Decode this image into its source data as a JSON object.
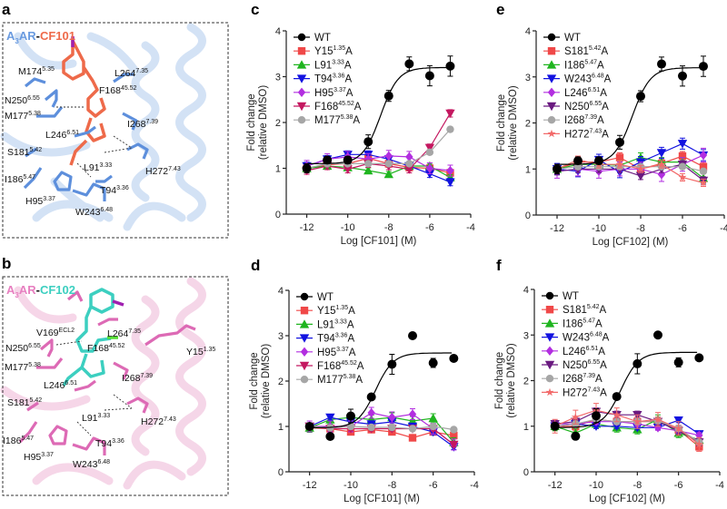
{
  "panels": {
    "a": {
      "letter": "a",
      "title_receptor": "A",
      "title_sub": "3",
      "title_rest": "AR",
      "title_dash": "-",
      "title_ligand": "CF101",
      "receptor_color": "#6a9be0",
      "ligand_color": "#ee6a4a",
      "residues": [
        {
          "name": "M174",
          "sup": "5.35"
        },
        {
          "name": "L264",
          "sup": "7.35"
        },
        {
          "name": "F168",
          "sup": "45.52"
        },
        {
          "name": "N250",
          "sup": "6.55"
        },
        {
          "name": "M177",
          "sup": "5.38"
        },
        {
          "name": "I268",
          "sup": "7.39"
        },
        {
          "name": "L246",
          "sup": "6.51"
        },
        {
          "name": "S181",
          "sup": "5.42"
        },
        {
          "name": "L91",
          "sup": "3.33"
        },
        {
          "name": "H272",
          "sup": "7.43"
        },
        {
          "name": "I186",
          "sup": "5.47"
        },
        {
          "name": "T94",
          "sup": "3.36"
        },
        {
          "name": "H95",
          "sup": "3.37"
        },
        {
          "name": "W243",
          "sup": "6.48"
        }
      ]
    },
    "b": {
      "letter": "b",
      "title_receptor": "A",
      "title_sub": "3",
      "title_rest": "AR",
      "title_dash": "-",
      "title_ligand": "CF102",
      "receptor_color": "#e77fc0",
      "ligand_color": "#3ccfc0",
      "residues": [
        {
          "name": "V169",
          "sup": "ECL2"
        },
        {
          "name": "L264",
          "sup": "7.35"
        },
        {
          "name": "N250",
          "sup": "6.55"
        },
        {
          "name": "F168",
          "sup": "45.52"
        },
        {
          "name": "Y15",
          "sup": "1.35"
        },
        {
          "name": "M177",
          "sup": "5.38"
        },
        {
          "name": "I268",
          "sup": "7.39"
        },
        {
          "name": "L246",
          "sup": "6.51"
        },
        {
          "name": "S181",
          "sup": "5.42"
        },
        {
          "name": "L91",
          "sup": "3.33"
        },
        {
          "name": "H272",
          "sup": "7.43"
        },
        {
          "name": "I186",
          "sup": "5.47"
        },
        {
          "name": "T94",
          "sup": "3.36"
        },
        {
          "name": "H95",
          "sup": "3.37"
        },
        {
          "name": "W243",
          "sup": "6.48"
        }
      ]
    }
  },
  "chart_data": [
    {
      "id": "c",
      "letter": "c",
      "type": "scatter",
      "xlabel": "Log [CF101] (M)",
      "ylabel_1": "Fold change",
      "ylabel_2": "(relative DMSO)",
      "xlim": [
        -13,
        -4
      ],
      "ylim": [
        0,
        4
      ],
      "xticks": [
        -12,
        -10,
        -8,
        -6,
        -4
      ],
      "yticks": [
        0,
        1,
        2,
        3,
        4
      ],
      "x": [
        -12,
        -11,
        -10,
        -9,
        -8,
        -7,
        -6,
        -5
      ],
      "legend_position": "top-left",
      "series": [
        {
          "name": "WT",
          "sup": "",
          "suffix": "",
          "color": "#000000",
          "marker": "circle",
          "y": [
            1.0,
            1.18,
            1.18,
            1.58,
            2.58,
            3.28,
            3.02,
            3.23
          ],
          "err": [
            0.1,
            0.08,
            0.08,
            0.15,
            0.12,
            0.15,
            0.22,
            0.22
          ],
          "fit": {
            "bottom": 1.1,
            "top": 3.2,
            "logEC50": -8.4,
            "hill": 1
          }
        },
        {
          "name": "Y15",
          "sup": "1.35",
          "suffix": "A",
          "color": "#f04848",
          "marker": "square",
          "y": [
            1.0,
            1.08,
            1.1,
            1.22,
            1.1,
            1.02,
            1.0,
            0.9
          ],
          "err": 0.08
        },
        {
          "name": "L91",
          "sup": "3.33",
          "suffix": "A",
          "color": "#1fb51f",
          "marker": "triangle-up",
          "y": [
            1.0,
            1.05,
            1.02,
            0.95,
            0.87,
            1.05,
            1.05,
            0.8
          ],
          "err": 0.06
        },
        {
          "name": "T94",
          "sup": "3.36",
          "suffix": "A",
          "color": "#1212e0",
          "marker": "triangle-down",
          "y": [
            1.05,
            1.2,
            1.3,
            1.3,
            1.2,
            1.05,
            0.88,
            0.7
          ],
          "err": 0.08
        },
        {
          "name": "H95",
          "sup": "3.37",
          "suffix": "A",
          "color": "#b22ee0",
          "marker": "diamond",
          "y": [
            1.05,
            1.2,
            1.25,
            1.2,
            1.27,
            1.25,
            1.0,
            0.95
          ],
          "err": 0.12
        },
        {
          "name": "F168",
          "sup": "45.52",
          "suffix": "A",
          "color": "#c41860",
          "marker": "triangle-down",
          "y": [
            0.95,
            1.05,
            0.98,
            1.1,
            1.05,
            0.98,
            1.45,
            2.2
          ],
          "err": 0.08
        },
        {
          "name": "M177",
          "sup": "5.38",
          "suffix": "A",
          "color": "#a6a6a6",
          "marker": "circle",
          "y": [
            1.0,
            1.1,
            1.1,
            1.1,
            1.1,
            1.1,
            1.35,
            1.85
          ],
          "err": 0.05
        }
      ]
    },
    {
      "id": "d",
      "letter": "d",
      "type": "scatter",
      "xlabel": "Log [CF101] (M)",
      "ylabel_1": "Fold change",
      "ylabel_2": "(relative DMSO)",
      "xlim": [
        -13,
        -4
      ],
      "ylim": [
        0,
        4
      ],
      "xticks": [
        -12,
        -10,
        -8,
        -6,
        -4
      ],
      "yticks": [
        0,
        1,
        2,
        3,
        4
      ],
      "x": [
        -12,
        -11,
        -10,
        -9,
        -8,
        -7,
        -6,
        -5
      ],
      "legend_position": "top-left",
      "series": [
        {
          "name": "WT",
          "sup": "",
          "suffix": "",
          "color": "#000000",
          "marker": "circle",
          "y": [
            1.0,
            0.78,
            1.23,
            1.65,
            2.37,
            3.0,
            2.4,
            2.5
          ],
          "err": [
            0.05,
            0.05,
            0.15,
            0.05,
            0.22,
            0.05,
            0.1,
            0.05
          ],
          "fit": {
            "bottom": 0.97,
            "top": 2.62,
            "logEC50": -8.8,
            "hill": 1
          }
        },
        {
          "name": "Y15",
          "sup": "1.35",
          "suffix": "A",
          "color": "#f04848",
          "marker": "square",
          "y": [
            0.97,
            0.95,
            0.88,
            0.93,
            0.88,
            0.75,
            0.88,
            0.8
          ],
          "err": 0.05
        },
        {
          "name": "L91",
          "sup": "3.33",
          "suffix": "A",
          "color": "#1fb51f",
          "marker": "triangle-up",
          "y": [
            0.97,
            1.15,
            1.2,
            1.15,
            1.2,
            1.12,
            1.18,
            0.65
          ],
          "err": 0.1
        },
        {
          "name": "T94",
          "sup": "3.36",
          "suffix": "A",
          "color": "#1212e0",
          "marker": "triangle-down",
          "y": [
            1.0,
            1.2,
            1.1,
            1.05,
            1.1,
            1.0,
            0.88,
            0.55
          ],
          "err": 0.06
        },
        {
          "name": "H95",
          "sup": "3.37",
          "suffix": "A",
          "color": "#b22ee0",
          "marker": "diamond",
          "y": [
            1.0,
            1.0,
            1.0,
            1.3,
            1.2,
            1.27,
            0.95,
            0.6
          ],
          "err": 0.12
        },
        {
          "name": "F168",
          "sup": "45.52",
          "suffix": "A",
          "color": "#c41860",
          "marker": "triangle-down",
          "y": [
            1.0,
            0.95,
            0.95,
            0.95,
            0.95,
            0.95,
            0.95,
            0.6
          ],
          "err": 0.05
        },
        {
          "name": "M177",
          "sup": "5.38",
          "suffix": "A",
          "color": "#a6a6a6",
          "marker": "circle",
          "y": [
            1.0,
            0.97,
            1.0,
            0.98,
            0.98,
            0.95,
            1.0,
            0.93
          ],
          "err": 0.05
        }
      ]
    },
    {
      "id": "e",
      "letter": "e",
      "type": "scatter",
      "xlabel": "Log [CF102] (M)",
      "ylabel_1": "Fold change",
      "ylabel_2": "(relative DMSO)",
      "xlim": [
        -13,
        -4
      ],
      "ylim": [
        0,
        4
      ],
      "xticks": [
        -12,
        -10,
        -8,
        -6,
        -4
      ],
      "yticks": [
        0,
        1,
        2,
        3,
        4
      ],
      "x": [
        -12,
        -11,
        -10,
        -9,
        -8,
        -7,
        -6,
        -5
      ],
      "legend_position": "top-left",
      "series": [
        {
          "name": "WT",
          "sup": "",
          "suffix": "",
          "color": "#000000",
          "marker": "circle",
          "y": [
            1.0,
            1.18,
            1.18,
            1.58,
            2.58,
            3.28,
            3.02,
            3.23
          ],
          "err": [
            0.1,
            0.08,
            0.08,
            0.15,
            0.12,
            0.15,
            0.22,
            0.22
          ],
          "fit": {
            "bottom": 1.1,
            "top": 3.2,
            "logEC50": -8.4,
            "hill": 1
          }
        },
        {
          "name": "S181",
          "sup": "5.42",
          "suffix": "A",
          "color": "#f04848",
          "marker": "square",
          "y": [
            1.0,
            1.15,
            1.15,
            1.25,
            1.0,
            1.12,
            1.28,
            1.05
          ],
          "err": 0.1
        },
        {
          "name": "I186",
          "sup": "5.47",
          "suffix": "A",
          "color": "#1fb51f",
          "marker": "triangle-up",
          "y": [
            1.0,
            1.1,
            1.1,
            1.08,
            1.25,
            1.15,
            1.15,
            0.8
          ],
          "err": 0.1
        },
        {
          "name": "W243",
          "sup": "6.48",
          "suffix": "A",
          "color": "#1212e0",
          "marker": "triangle-down",
          "y": [
            1.0,
            0.95,
            1.2,
            0.93,
            1.15,
            1.35,
            1.55,
            1.3
          ],
          "err": 0.12
        },
        {
          "name": "L246",
          "sup": "6.51",
          "suffix": "A",
          "color": "#b22ee0",
          "marker": "diamond",
          "y": [
            0.95,
            1.0,
            0.95,
            1.0,
            1.0,
            0.88,
            1.1,
            1.3
          ],
          "err": 0.15
        },
        {
          "name": "N250",
          "sup": "6.55",
          "suffix": "A",
          "color": "#6a1a80",
          "marker": "triangle-down",
          "y": [
            0.95,
            1.0,
            1.0,
            1.0,
            0.85,
            1.0,
            1.1,
            0.75
          ],
          "err": 0.08
        },
        {
          "name": "I268",
          "sup": "7.39",
          "suffix": "A",
          "color": "#a6a6a6",
          "marker": "circle",
          "y": [
            1.0,
            1.05,
            1.05,
            1.05,
            1.05,
            1.05,
            1.05,
            0.95
          ],
          "err": 0.05
        },
        {
          "name": "H272",
          "sup": "7.43",
          "suffix": "A",
          "color": "#f26a6a",
          "marker": "star",
          "y": [
            1.0,
            1.2,
            1.1,
            1.1,
            1.0,
            1.1,
            0.82,
            0.7
          ],
          "err": 0.08
        }
      ]
    },
    {
      "id": "f",
      "letter": "f",
      "type": "scatter",
      "xlabel": "Log [CF102] (M)",
      "ylabel_1": "Fold change",
      "ylabel_2": "(relative DMSO)",
      "xlim": [
        -13,
        -4
      ],
      "ylim": [
        0,
        4
      ],
      "xticks": [
        -12,
        -10,
        -8,
        -6,
        -4
      ],
      "yticks": [
        0,
        1,
        2,
        3,
        4
      ],
      "x": [
        -12,
        -11,
        -10,
        -9,
        -8,
        -7,
        -6,
        -5
      ],
      "legend_position": "top-left",
      "series": [
        {
          "name": "WT",
          "sup": "",
          "suffix": "",
          "color": "#000000",
          "marker": "circle",
          "y": [
            1.0,
            0.78,
            1.23,
            1.65,
            2.37,
            3.0,
            2.4,
            2.5
          ],
          "err": [
            0.05,
            0.05,
            0.15,
            0.05,
            0.22,
            0.05,
            0.1,
            0.05
          ],
          "fit": {
            "bottom": 0.97,
            "top": 2.62,
            "logEC50": -8.8,
            "hill": 1
          }
        },
        {
          "name": "S181",
          "sup": "5.42",
          "suffix": "A",
          "color": "#f04848",
          "marker": "square",
          "y": [
            1.0,
            1.0,
            1.15,
            1.1,
            1.1,
            1.1,
            0.92,
            0.55
          ],
          "err": 0.1
        },
        {
          "name": "I186",
          "sup": "5.47",
          "suffix": "A",
          "color": "#1fb51f",
          "marker": "triangle-up",
          "y": [
            1.0,
            0.85,
            1.05,
            0.97,
            0.93,
            1.15,
            0.85,
            0.7
          ],
          "err": 0.1
        },
        {
          "name": "W243",
          "sup": "6.48",
          "suffix": "A",
          "color": "#1212e0",
          "marker": "triangle-down",
          "y": [
            1.0,
            1.05,
            1.0,
            1.0,
            0.97,
            0.97,
            1.13,
            0.83
          ],
          "err": 0.05
        },
        {
          "name": "L246",
          "sup": "6.51",
          "suffix": "A",
          "color": "#b22ee0",
          "marker": "diamond",
          "y": [
            1.05,
            1.05,
            1.1,
            1.1,
            1.05,
            0.97,
            0.9,
            0.8
          ],
          "err": 0.06
        },
        {
          "name": "N250",
          "sup": "6.55",
          "suffix": "A",
          "color": "#6a1a80",
          "marker": "triangle-down",
          "y": [
            1.05,
            1.1,
            1.32,
            1.25,
            1.25,
            1.1,
            0.9,
            0.65
          ],
          "err": 0.08
        },
        {
          "name": "I268",
          "sup": "7.39",
          "suffix": "A",
          "color": "#a6a6a6",
          "marker": "circle",
          "y": [
            1.0,
            1.05,
            1.15,
            1.1,
            1.1,
            1.12,
            0.95,
            0.65
          ],
          "err": 0.06
        },
        {
          "name": "H272",
          "sup": "7.43",
          "suffix": "A",
          "color": "#f26a6a",
          "marker": "star",
          "y": [
            1.0,
            1.2,
            1.35,
            1.25,
            1.1,
            1.15,
            0.95,
            0.6
          ],
          "err": 0.15
        }
      ]
    }
  ]
}
